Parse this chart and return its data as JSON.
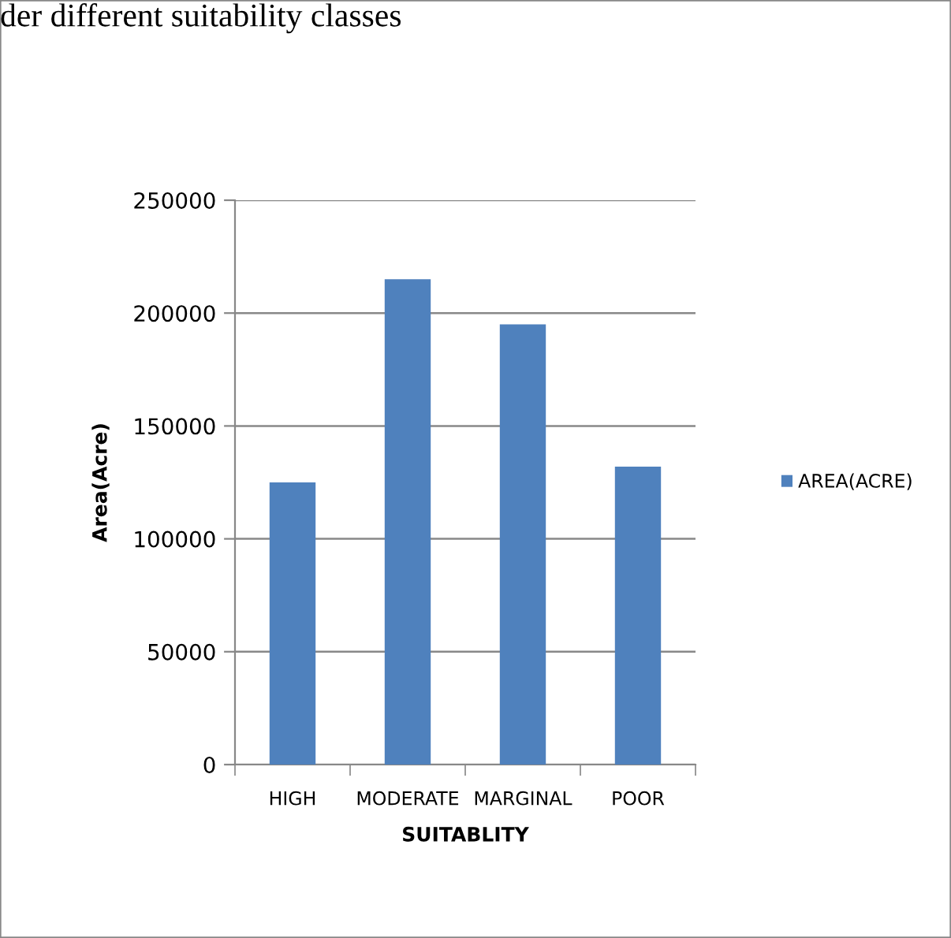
{
  "chart_data": {
    "type": "bar",
    "title": "der different suitability classes",
    "xlabel": "SUITABLITY",
    "ylabel": "Area(Acre)",
    "categories": [
      "HIGH",
      "MODERATE",
      "MARGINAL",
      "POOR"
    ],
    "series": [
      {
        "name": "AREA(ACRE)",
        "color": "#4f81bd",
        "values": [
          125000,
          215000,
          195000,
          132000
        ]
      }
    ],
    "ylim": [
      0,
      250000
    ],
    "yticks": [
      0,
      50000,
      100000,
      150000,
      200000,
      250000
    ],
    "grid": "y",
    "legend": "right"
  }
}
